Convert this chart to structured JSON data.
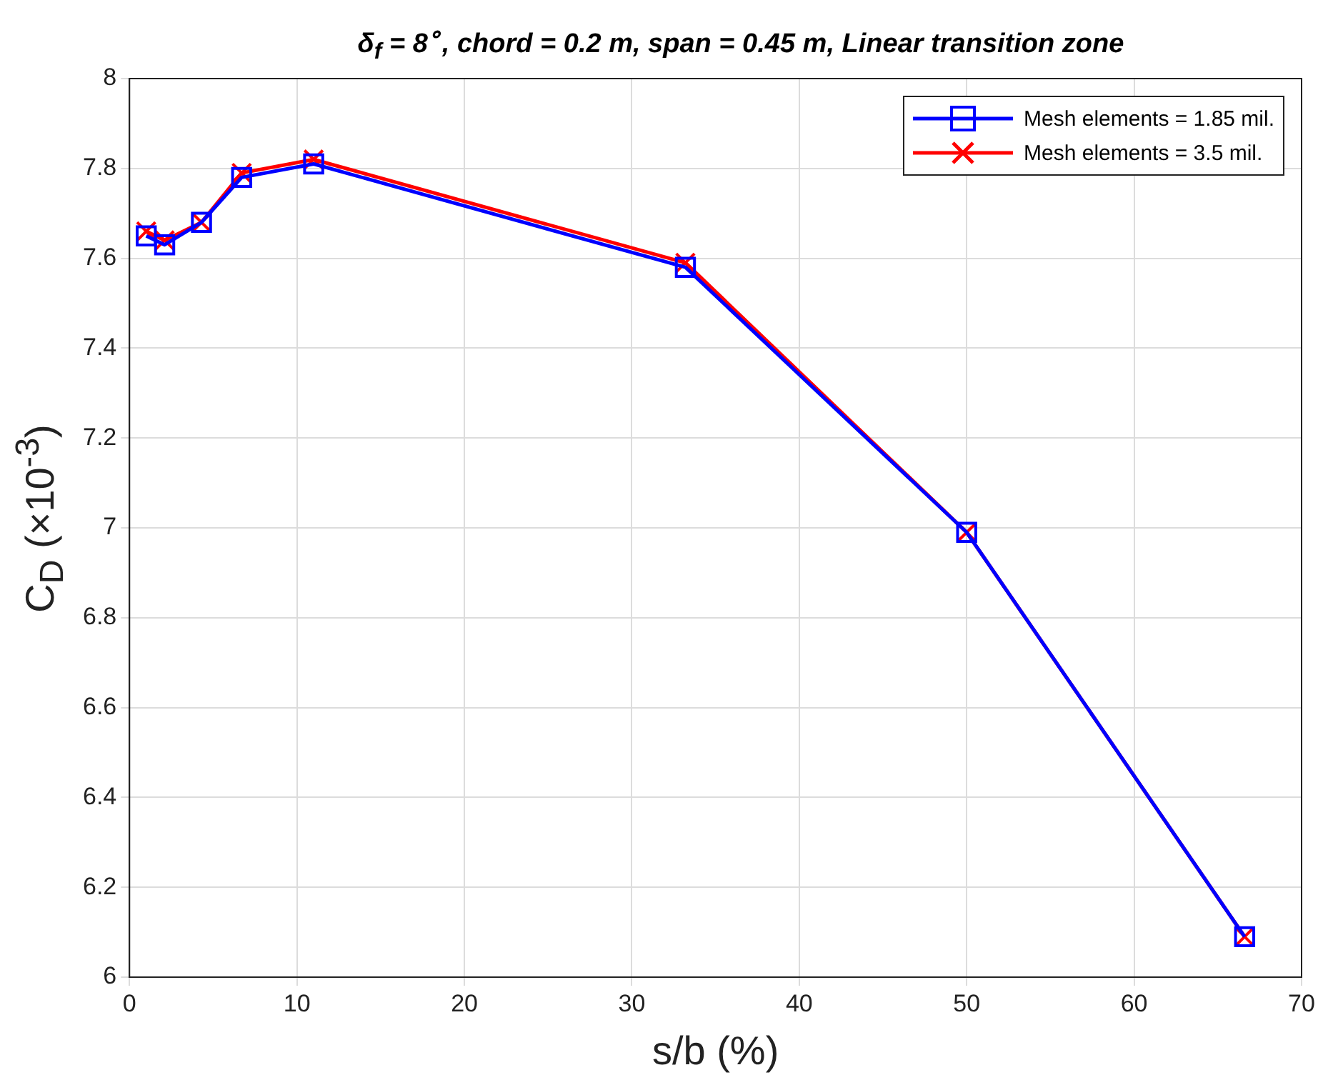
{
  "chart_data": {
    "type": "line",
    "title": "δ$_{f}$ = 8$^{∘}$, chord = 0.2 m, span = 0.45 m, Linear transition zone",
    "xlabel": "s/b (%)",
    "ylabel": "C$_{D}$ (×10$^{-3}$)",
    "x": [
      1.0,
      2.1,
      4.3,
      6.7,
      11,
      33.2,
      50,
      66.6
    ],
    "series": [
      {
        "name": "Mesh elements = 1.85 mil.",
        "color": "#0000ff",
        "marker": "square",
        "values": [
          7.65,
          7.63,
          7.68,
          7.78,
          7.81,
          7.58,
          6.99,
          6.09
        ]
      },
      {
        "name": "Mesh elements = 3.5 mil.",
        "color": "#ff0000",
        "marker": "cross",
        "values": [
          7.66,
          7.64,
          7.68,
          7.79,
          7.82,
          7.59,
          6.99,
          6.09
        ]
      }
    ],
    "xlim": [
      0,
      70
    ],
    "xticks": [
      0,
      10,
      20,
      30,
      40,
      50,
      60,
      70
    ],
    "ylim": [
      6,
      8
    ],
    "yticks": [
      6,
      {
        "value": 6.2,
        "label": "6.2"
      },
      {
        "value": 6.4,
        "label": "6.4"
      },
      {
        "value": 6.6,
        "label": "6.6"
      },
      {
        "value": 6.8,
        "label": "6.8"
      },
      7,
      {
        "value": 7.2,
        "label": "7.2"
      },
      {
        "value": 7.4,
        "label": "7.4"
      },
      {
        "value": 7.6,
        "label": "7.6"
      },
      {
        "value": 7.8,
        "label": "7.8"
      },
      8
    ],
    "grid": true,
    "legend": "top right",
    "line_style": "solid"
  }
}
